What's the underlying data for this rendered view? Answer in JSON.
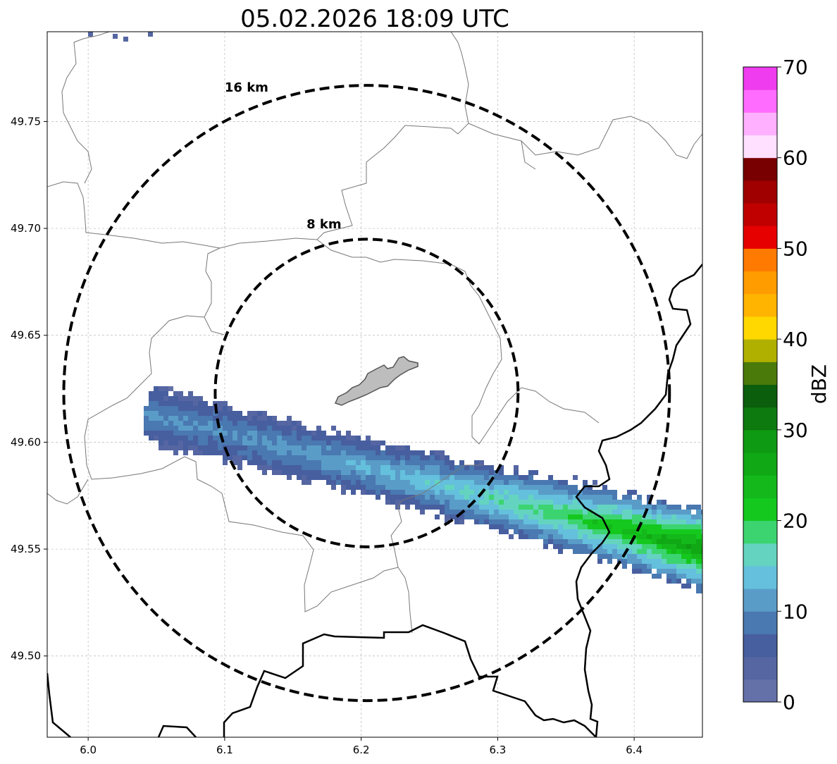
{
  "title": "05.02.2026 18:09 UTC",
  "map": {
    "x_range": [
      5.97,
      6.45
    ],
    "y_range": [
      49.462,
      49.792
    ],
    "center": [
      6.204,
      49.623
    ],
    "grid": true,
    "x_ticks": [
      {
        "value": 6.0,
        "label": "6.0"
      },
      {
        "value": 6.1,
        "label": "6.1"
      },
      {
        "value": 6.2,
        "label": "6.2"
      },
      {
        "value": 6.3,
        "label": "6.3"
      },
      {
        "value": 6.4,
        "label": "6.4"
      }
    ],
    "y_ticks": [
      {
        "value": 49.5,
        "label": "49.50"
      },
      {
        "value": 49.55,
        "label": "49.55"
      },
      {
        "value": 49.6,
        "label": "49.60"
      },
      {
        "value": 49.65,
        "label": "49.65"
      },
      {
        "value": 49.7,
        "label": "49.70"
      },
      {
        "value": 49.75,
        "label": "49.75"
      }
    ],
    "range_rings": [
      {
        "radius_km": 8,
        "label": "8 km",
        "label_lon": 6.16,
        "label_lat": 49.7
      },
      {
        "radius_km": 16,
        "label": "16 km",
        "label_lon": 6.1,
        "label_lat": 49.764
      }
    ],
    "reflectivity_band": {
      "description_free": true,
      "axis_start": [
        6.05,
        49.612
      ],
      "axis_end": [
        6.45,
        49.55
      ],
      "half_width_deg": 0.022,
      "core_value_west": 8,
      "core_value_east": 26
    },
    "urban_area_color": "#bdbdbd",
    "border_color": "#000000",
    "commune_color": "#777777",
    "ring_color": "#000000"
  },
  "colorbar": {
    "label": "dBZ",
    "min": 0,
    "max": 70,
    "step": 2.5,
    "ticks": [
      {
        "value": 0,
        "label": "0"
      },
      {
        "value": 10,
        "label": "10"
      },
      {
        "value": 20,
        "label": "20"
      },
      {
        "value": 30,
        "label": "30"
      },
      {
        "value": 40,
        "label": "40"
      },
      {
        "value": 50,
        "label": "50"
      },
      {
        "value": 60,
        "label": "60"
      },
      {
        "value": 70,
        "label": "70"
      }
    ],
    "colors": [
      "#6470a8",
      "#5566a2",
      "#475e9f",
      "#4a78b0",
      "#5a9cc8",
      "#64c0dc",
      "#64d4c0",
      "#3cd470",
      "#14c81e",
      "#14b81a",
      "#10a814",
      "#0e9a12",
      "#0c7a0e",
      "#0a5e0c",
      "#4a7a0a",
      "#b0b000",
      "#ffd800",
      "#ffb400",
      "#ff9c00",
      "#ff7a00",
      "#e60000",
      "#c00000",
      "#a00000",
      "#780000",
      "#ffe0ff",
      "#ffb0ff",
      "#ff6cff",
      "#ee3cee"
    ]
  }
}
